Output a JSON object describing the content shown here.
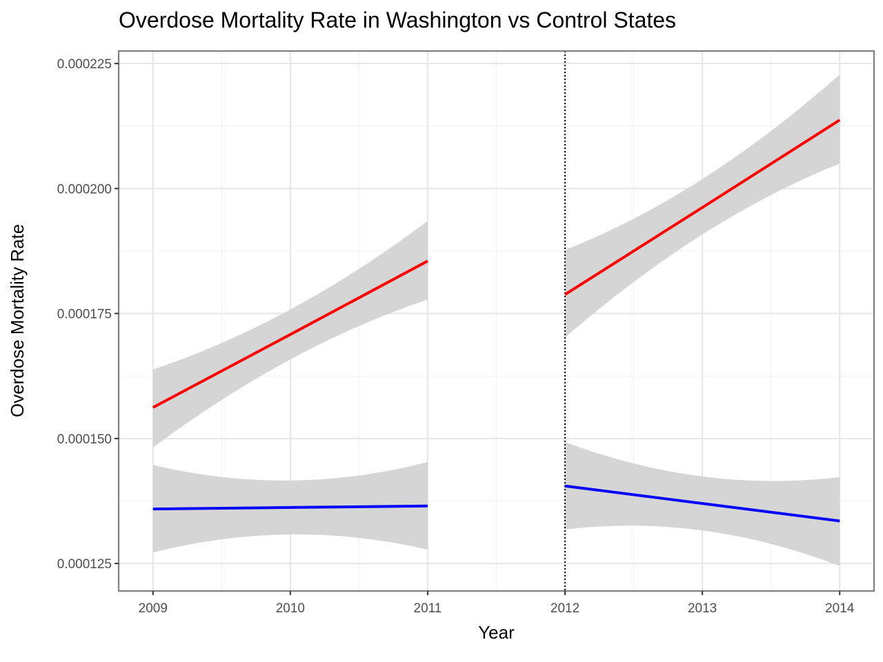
{
  "chart_data": {
    "type": "line",
    "title": "Overdose Mortality Rate in Washington vs Control States",
    "xlabel": "Year",
    "ylabel": "Overdose Mortality Rate",
    "xlim": [
      2008.75,
      2014.25
    ],
    "ylim": [
      0.0001195,
      0.0002275
    ],
    "x_ticks": [
      2009,
      2010,
      2011,
      2012,
      2013,
      2014
    ],
    "x_tick_labels": [
      "2009",
      "2010",
      "2011",
      "2012",
      "2013",
      "2014"
    ],
    "y_ticks": [
      0.000125,
      0.00015,
      0.000175,
      0.0002,
      0.000225
    ],
    "y_tick_labels": [
      "0.000125",
      "0.000150",
      "0.000175",
      "0.000200",
      "0.000225"
    ],
    "grid": true,
    "vline": {
      "x": 2012,
      "style": "dotted",
      "color": "#000000"
    },
    "series": [
      {
        "color": "#ff0000",
        "segment": "pre",
        "x": [
          2009,
          2010,
          2011
        ],
        "y": [
          0.0001562,
          0.0001708,
          0.0001855
        ],
        "ci_lower": [
          0.0001482,
          0.0001658,
          0.0001778
        ],
        "ci_upper": [
          0.0001638,
          0.0001758,
          0.0001935
        ]
      },
      {
        "color": "#ff0000",
        "segment": "post",
        "x": [
          2012,
          2013,
          2014
        ],
        "y": [
          0.0001788,
          0.0001962,
          0.0002137
        ],
        "ci_lower": [
          0.0001702,
          0.0001908,
          0.000205
        ],
        "ci_upper": [
          0.0001877,
          0.0002019,
          0.0002228
        ]
      },
      {
        "color": "#0000ff",
        "segment": "pre",
        "x": [
          2009,
          2010,
          2011
        ],
        "y": [
          0.0001359,
          0.0001362,
          0.0001365
        ],
        "ci_lower": [
          0.0001272,
          0.0001308,
          0.0001278
        ],
        "ci_upper": [
          0.0001447,
          0.0001416,
          0.0001453
        ]
      },
      {
        "color": "#0000ff",
        "segment": "post",
        "x": [
          2012,
          2013,
          2014
        ],
        "y": [
          0.0001405,
          0.000137,
          0.0001335
        ],
        "ci_lower": [
          0.0001318,
          0.0001316,
          0.0001245
        ],
        "ci_upper": [
          0.0001493,
          0.0001424,
          0.0001423
        ]
      }
    ],
    "band_color": "#d3d3d3",
    "panel_border_color": "#7f7f7f",
    "major_grid_color": "#e5e5e5",
    "minor_grid_color": "#f2f2f2"
  }
}
